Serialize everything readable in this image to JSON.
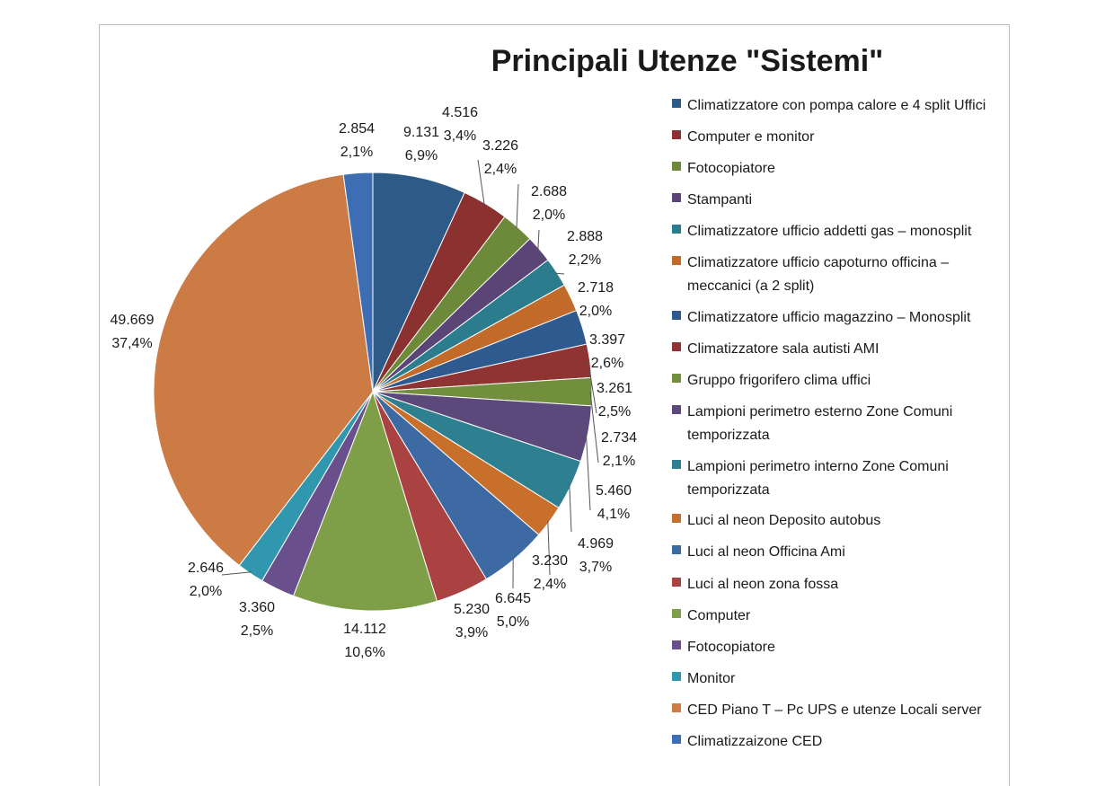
{
  "chart_data": {
    "type": "pie",
    "title": "Principali Utenze \"Sistemi\"",
    "legend_position": "right",
    "slices": [
      {
        "label": [
          "Climatizzatore con pompa calore e 4 split Uffici"
        ],
        "value": 9131,
        "value_label": "9.131",
        "percent_label": "6,9%",
        "color": "#2e5a87"
      },
      {
        "label": [
          "Computer e monitor"
        ],
        "value": 4516,
        "value_label": "4.516",
        "percent_label": "3,4%",
        "color": "#8b3230"
      },
      {
        "label": [
          "Fotocopiatore"
        ],
        "value": 3226,
        "value_label": "3.226",
        "percent_label": "2,4%",
        "color": "#6c8a3a"
      },
      {
        "label": [
          "Stampanti"
        ],
        "value": 2688,
        "value_label": "2.688",
        "percent_label": "2,0%",
        "color": "#5b4577"
      },
      {
        "label": [
          "Climatizzatore ufficio addetti gas – monosplit"
        ],
        "value": 2888,
        "value_label": "2.888",
        "percent_label": "2,2%",
        "color": "#2b7c8c"
      },
      {
        "label": [
          "Climatizzatore ufficio capoturno officina –",
          "meccanici (a 2 split)"
        ],
        "value": 2718,
        "value_label": "2.718",
        "percent_label": "2,0%",
        "color": "#c26a2a"
      },
      {
        "label": [
          "Climatizzatore ufficio magazzino – Monosplit"
        ],
        "value": 3397,
        "value_label": "3.397",
        "percent_label": "2,6%",
        "color": "#2e5a8f"
      },
      {
        "label": [
          "Climatizzatore sala autisti AMI"
        ],
        "value": 3261,
        "value_label": "3.261",
        "percent_label": "2,5%",
        "color": "#8f3432"
      },
      {
        "label": [
          "Gruppo frigorifero clima uffici"
        ],
        "value": 2734,
        "value_label": "2.734",
        "percent_label": "2,1%",
        "color": "#718f3d"
      },
      {
        "label": [
          "Lampioni perimetro esterno Zone Comuni",
          "temporizzata"
        ],
        "value": 5460,
        "value_label": "5.460",
        "percent_label": "4,1%",
        "color": "#5d487b"
      },
      {
        "label": [
          "Lampioni perimetro interno Zone Comuni",
          "temporizzata"
        ],
        "value": 4969,
        "value_label": "4.969",
        "percent_label": "3,7%",
        "color": "#2e8090"
      },
      {
        "label": [
          "Luci al neon Deposito autobus"
        ],
        "value": 3230,
        "value_label": "3.230",
        "percent_label": "2,4%",
        "color": "#c96f2c"
      },
      {
        "label": [
          "Luci al neon Officina Ami"
        ],
        "value": 6645,
        "value_label": "6.645",
        "percent_label": "5,0%",
        "color": "#3d6aa3"
      },
      {
        "label": [
          "Luci al neon zona fossa"
        ],
        "value": 5230,
        "value_label": "5.230",
        "percent_label": "3,9%",
        "color": "#a94241"
      },
      {
        "label": [
          "Computer"
        ],
        "value": 14112,
        "value_label": "14.112",
        "percent_label": "10,6%",
        "color": "#7e9e47"
      },
      {
        "label": [
          "Fotocopiatore"
        ],
        "value": 3360,
        "value_label": "3.360",
        "percent_label": "2,5%",
        "color": "#694f8b"
      },
      {
        "label": [
          "Monitor"
        ],
        "value": 2646,
        "value_label": "2.646",
        "percent_label": "2,0%",
        "color": "#3197ae"
      },
      {
        "label": [
          "CED Piano T – Pc  UPS e utenze Locali server"
        ],
        "value": 49669,
        "value_label": "49.669",
        "percent_label": "37,4%",
        "color": "#cc7b45"
      },
      {
        "label": [
          "Climatizzaizone CED"
        ],
        "value": 2854,
        "value_label": "2.854",
        "percent_label": "2,1%",
        "color": "#3d6db3"
      }
    ]
  }
}
